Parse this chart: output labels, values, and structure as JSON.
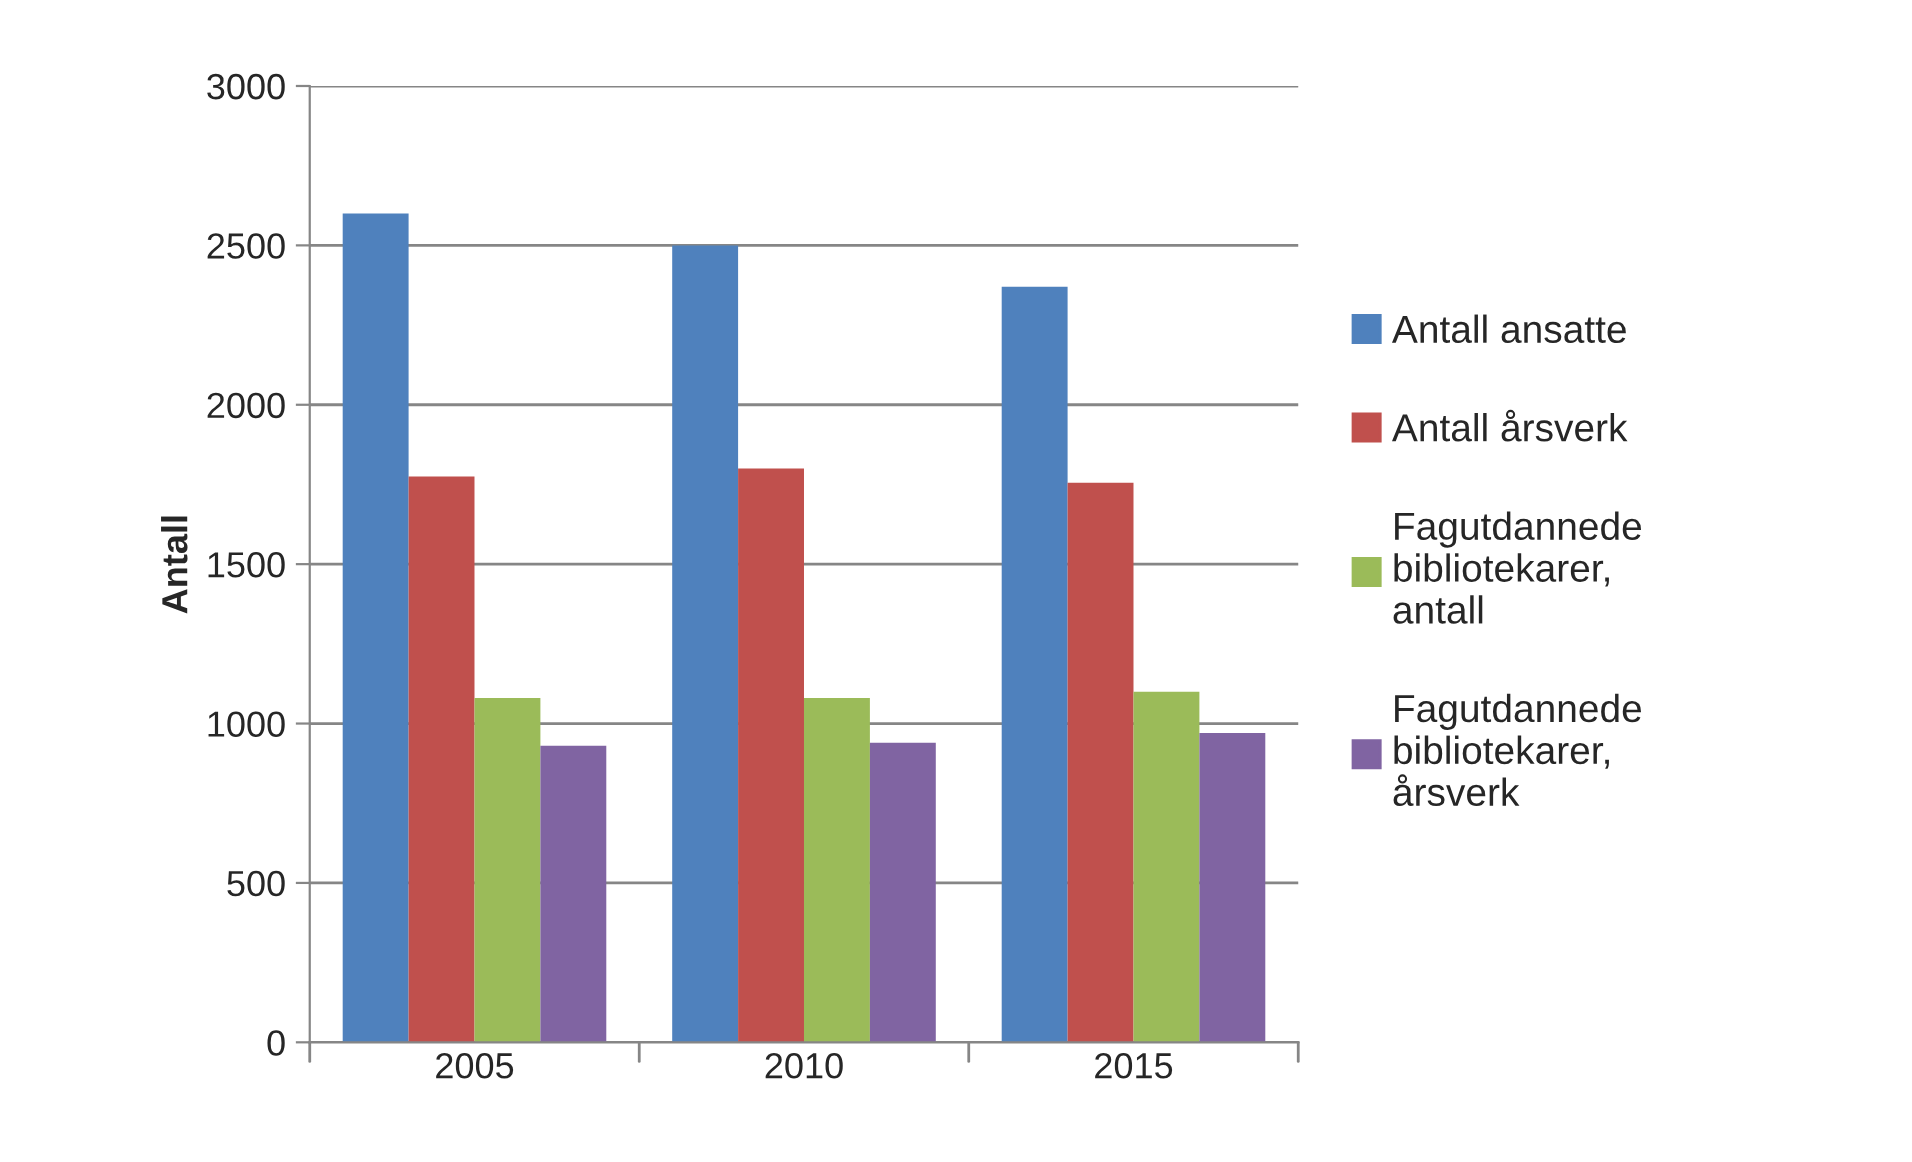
{
  "chart_data": {
    "type": "bar",
    "ylabel": "Antall",
    "categories": [
      "2005",
      "2010",
      "2015"
    ],
    "series": [
      {
        "name": "Antall ansatte",
        "color": "#4f81bd",
        "values": [
          2600,
          2500,
          2370
        ]
      },
      {
        "name": "Antall årsverk",
        "color": "#c0504d",
        "values": [
          1775,
          1800,
          1755
        ]
      },
      {
        "name": "Fagutdannede bibliotekarer, antall",
        "color": "#9bbb59",
        "values": [
          1080,
          1080,
          1100
        ]
      },
      {
        "name": "Fagutdannede bibliotekarer, årsverk",
        "color": "#8064a2",
        "values": [
          930,
          940,
          970
        ]
      }
    ],
    "ylim": [
      0,
      3000
    ],
    "yticks": [
      0,
      500,
      1000,
      1500,
      2000,
      2500,
      3000
    ],
    "grid": "y",
    "legend": "right"
  }
}
